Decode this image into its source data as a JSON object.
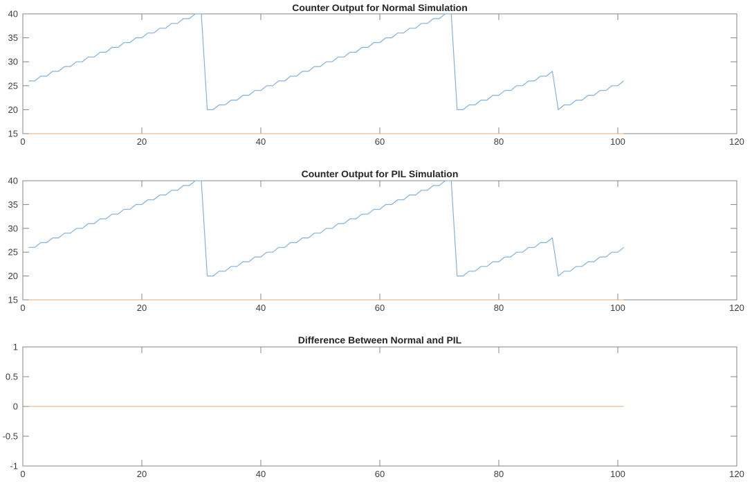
{
  "figure": {
    "background": "#ffffff",
    "axis_color": "#848484",
    "label_color": "#3d3d3d",
    "title_color": "#262626"
  },
  "chart_data": [
    {
      "id": "normal",
      "type": "line",
      "title": "Counter Output for Normal Simulation",
      "xlabel": "",
      "ylabel": "",
      "xlim": [
        0,
        120
      ],
      "ylim": [
        15,
        40
      ],
      "xticks": [
        0,
        20,
        40,
        60,
        80,
        100,
        120
      ],
      "xtick_labels": [
        "0",
        "20",
        "40",
        "60",
        "80",
        "100",
        "120"
      ],
      "yticks": [
        15,
        20,
        25,
        30,
        35,
        40
      ],
      "ytick_labels": [
        "15",
        "20",
        "25",
        "30",
        "35",
        "40"
      ],
      "grid": false,
      "legend": null,
      "series": [
        {
          "name": "counter-output-normal",
          "color": "#7fb2e2",
          "x_start": 1,
          "x_step": 1,
          "y": [
            26,
            26,
            27,
            27,
            28,
            28,
            29,
            29,
            30,
            30,
            31,
            31,
            32,
            32,
            33,
            33,
            34,
            34,
            35,
            35,
            36,
            36,
            37,
            37,
            38,
            38,
            39,
            39,
            40,
            40,
            20,
            20,
            21,
            21,
            22,
            22,
            23,
            23,
            24,
            24,
            25,
            25,
            26,
            26,
            27,
            27,
            28,
            28,
            29,
            29,
            30,
            30,
            31,
            31,
            32,
            32,
            33,
            33,
            34,
            34,
            35,
            35,
            36,
            36,
            37,
            37,
            38,
            38,
            39,
            39,
            40,
            40,
            20,
            20,
            21,
            21,
            22,
            22,
            23,
            23,
            24,
            24,
            25,
            25,
            26,
            26,
            27,
            27,
            28,
            20,
            21,
            21,
            22,
            22,
            23,
            23,
            24,
            24,
            25,
            25,
            26
          ]
        },
        {
          "name": "baseline-normal",
          "color": "#f2b998",
          "x_start": 1,
          "x_step": 1,
          "y_const": 15,
          "n": 101
        }
      ]
    },
    {
      "id": "pil",
      "type": "line",
      "title": "Counter Output for PIL Simulation",
      "xlabel": "",
      "ylabel": "",
      "xlim": [
        0,
        120
      ],
      "ylim": [
        15,
        40
      ],
      "xticks": [
        0,
        20,
        40,
        60,
        80,
        100,
        120
      ],
      "xtick_labels": [
        "0",
        "20",
        "40",
        "60",
        "80",
        "100",
        "120"
      ],
      "yticks": [
        15,
        20,
        25,
        30,
        35,
        40
      ],
      "ytick_labels": [
        "15",
        "20",
        "25",
        "30",
        "35",
        "40"
      ],
      "grid": false,
      "legend": null,
      "series": [
        {
          "name": "counter-output-pil",
          "color": "#7fb2e2",
          "x_start": 1,
          "x_step": 1,
          "y": [
            26,
            26,
            27,
            27,
            28,
            28,
            29,
            29,
            30,
            30,
            31,
            31,
            32,
            32,
            33,
            33,
            34,
            34,
            35,
            35,
            36,
            36,
            37,
            37,
            38,
            38,
            39,
            39,
            40,
            40,
            20,
            20,
            21,
            21,
            22,
            22,
            23,
            23,
            24,
            24,
            25,
            25,
            26,
            26,
            27,
            27,
            28,
            28,
            29,
            29,
            30,
            30,
            31,
            31,
            32,
            32,
            33,
            33,
            34,
            34,
            35,
            35,
            36,
            36,
            37,
            37,
            38,
            38,
            39,
            39,
            40,
            40,
            20,
            20,
            21,
            21,
            22,
            22,
            23,
            23,
            24,
            24,
            25,
            25,
            26,
            26,
            27,
            27,
            28,
            20,
            21,
            21,
            22,
            22,
            23,
            23,
            24,
            24,
            25,
            25,
            26
          ]
        },
        {
          "name": "baseline-pil",
          "color": "#f2b998",
          "x_start": 1,
          "x_step": 1,
          "y_const": 15,
          "n": 101
        }
      ]
    },
    {
      "id": "difference",
      "type": "line",
      "title": "Difference Between Normal and PIL",
      "xlabel": "",
      "ylabel": "",
      "xlim": [
        0,
        120
      ],
      "ylim": [
        -1,
        1
      ],
      "xticks": [
        0,
        20,
        40,
        60,
        80,
        100,
        120
      ],
      "xtick_labels": [
        "0",
        "20",
        "40",
        "60",
        "80",
        "100",
        "120"
      ],
      "yticks": [
        -1,
        -0.5,
        0,
        0.5,
        1
      ],
      "ytick_labels": [
        "-1",
        "-0.5",
        "0",
        "0.5",
        "1"
      ],
      "grid": false,
      "legend": null,
      "series": [
        {
          "name": "difference-line",
          "color": "#f2b998",
          "x_start": 1,
          "x_step": 1,
          "y_const": 0,
          "n": 101
        }
      ]
    }
  ]
}
